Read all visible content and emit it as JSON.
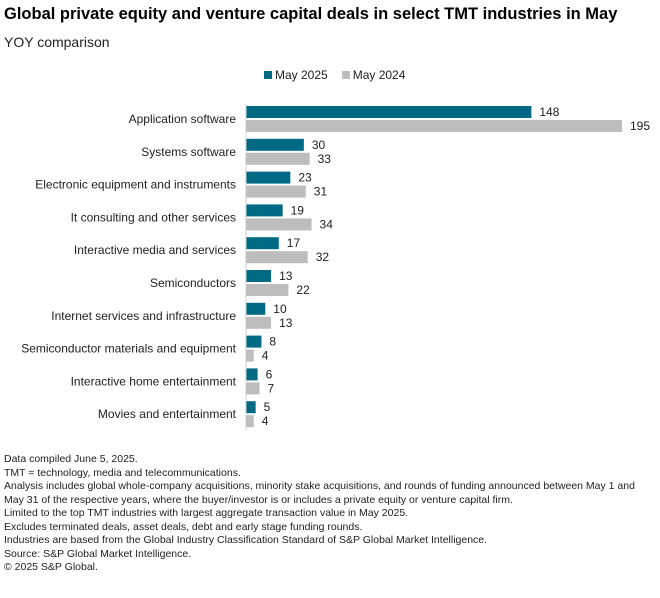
{
  "chart_data": {
    "type": "bar",
    "orientation": "horizontal",
    "title": "Global private equity and venture capital deals in select TMT industries in May",
    "subtitle": "YOY comparison",
    "xlabel": "",
    "ylabel": "",
    "xlim": [
      0,
      195
    ],
    "grid": false,
    "legend_position": "top",
    "categories": [
      "Application software",
      "Systems software",
      "Electronic equipment and instruments",
      "It consulting and other services",
      "Interactive media and services",
      "Semiconductors",
      "Internet services and infrastructure",
      "Semiconductor materials and equipment",
      "Interactive home entertainment",
      "Movies and entertainment"
    ],
    "series": [
      {
        "name": "May 2025",
        "color": "#006a84",
        "values": [
          148,
          30,
          23,
          19,
          17,
          13,
          10,
          8,
          6,
          5
        ]
      },
      {
        "name": "May 2024",
        "color": "#bdbdbd",
        "values": [
          195,
          33,
          31,
          34,
          32,
          22,
          13,
          4,
          7,
          4
        ]
      }
    ]
  },
  "notes": [
    "Data compiled June 5, 2025.",
    "TMT = technology, media and telecommunications.",
    "Analysis includes global whole-company acquisitions, minority stake acquisitions, and rounds of funding announced between May 1 and May 31 of the respective years, where the buyer/investor is or includes a private equity or venture capital firm.",
    "Limited to the top TMT industries with largest aggregate transaction value in May 2025.",
    "Excludes terminated deals, asset deals, debt and early stage funding rounds.",
    "Industries are based from the Global Industry Classification Standard of S&P Global Market Intelligence.",
    "Source: S&P Global Market Intelligence.",
    "© 2025 S&P Global."
  ]
}
